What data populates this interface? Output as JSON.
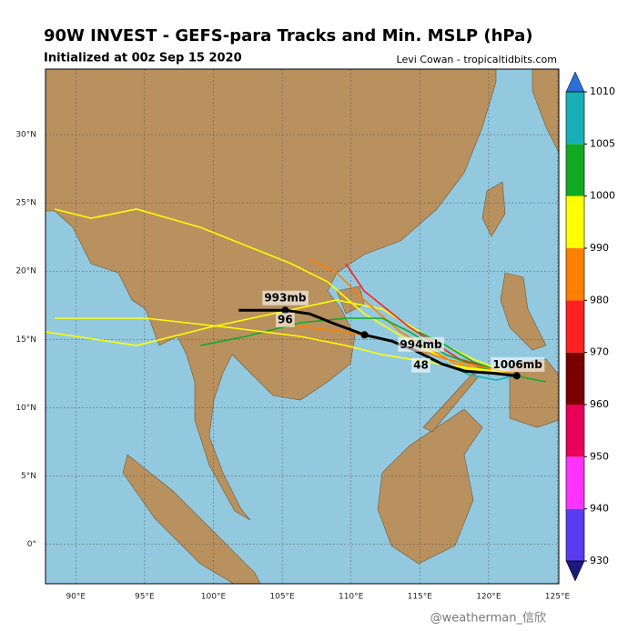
{
  "header": {
    "title": "90W INVEST - GEFS-para Tracks and Min. MSLP (hPa)",
    "subtitle": "Initialized at 00z Sep 15 2020",
    "credit": "Levi Cowan - tropicaltidbits.com"
  },
  "map": {
    "lon_range": [
      87.8,
      125.1
    ],
    "lat_range": [
      -2.9,
      34.8
    ],
    "lon_ticks": [
      {
        "value": 90,
        "label": "90°E"
      },
      {
        "value": 95,
        "label": "95°E"
      },
      {
        "value": 100,
        "label": "100°E"
      },
      {
        "value": 105,
        "label": "105°E"
      },
      {
        "value": 110,
        "label": "110°E"
      },
      {
        "value": 115,
        "label": "115°E"
      },
      {
        "value": 120,
        "label": "120°E"
      },
      {
        "value": 125,
        "label": "125°E"
      }
    ],
    "lat_ticks": [
      {
        "value": 0,
        "label": "0°"
      },
      {
        "value": 5,
        "label": "5°N"
      },
      {
        "value": 10,
        "label": "10°N"
      },
      {
        "value": 15,
        "label": "15°N"
      },
      {
        "value": 20,
        "label": "20°N"
      },
      {
        "value": 25,
        "label": "25°N"
      },
      {
        "value": 30,
        "label": "30°N"
      }
    ]
  },
  "mean_track": {
    "color": "#000000",
    "points": [
      [
        122.04,
        12.33
      ],
      [
        120.25,
        12.53
      ],
      [
        118.26,
        12.67
      ],
      [
        116.61,
        13.2
      ],
      [
        114.62,
        14.2
      ],
      [
        112.97,
        14.87
      ],
      [
        110.98,
        15.33
      ],
      [
        108.66,
        16.2
      ],
      [
        107.0,
        16.87
      ],
      [
        105.22,
        17.13
      ],
      [
        103.7,
        17.13
      ],
      [
        101.84,
        17.13
      ]
    ],
    "dots": [
      [
        122.04,
        12.33
      ],
      [
        110.98,
        15.33
      ],
      [
        105.22,
        17.13
      ]
    ],
    "labels": [
      {
        "lon": 122.1,
        "lat": 13.13,
        "text": "1006mb"
      },
      {
        "lon": 115.08,
        "lat": 14.6,
        "text": "994mb"
      },
      {
        "lon": 105.22,
        "lat": 18.0,
        "text": "993mb"
      },
      {
        "lon": 105.22,
        "lat": 16.4,
        "text": "96"
      },
      {
        "lon": 115.08,
        "lat": 13.07,
        "text": "48"
      }
    ]
  },
  "colorbar": {
    "levels": [
      930,
      940,
      950,
      960,
      970,
      980,
      990,
      1000,
      1005,
      1010
    ],
    "colors": [
      "#5a3cf0",
      "#ff33ff",
      "#e8005a",
      "#7a0000",
      "#ff2020",
      "#ff7f00",
      "#ffff00",
      "#11aa22",
      "#18b0b8"
    ],
    "under_color": "#1a1a7a",
    "over_color": "#2d6fd8"
  },
  "watermark": "@weatherman_信欣"
}
